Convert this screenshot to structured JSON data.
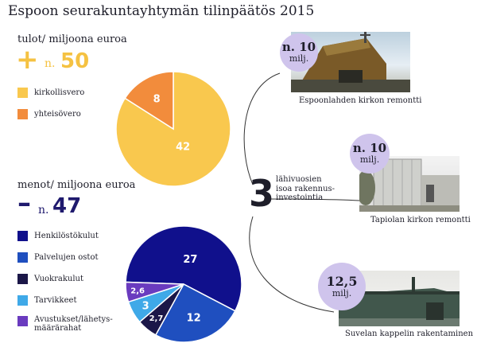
{
  "title": "Espoon seurakuntayhtymän tilinpäätös 2015",
  "income": {
    "label": "tulot/ miljoona euroa",
    "sign": "+",
    "prefix": "n.",
    "value": "50"
  },
  "expenses": {
    "label": "menot/ miljoona euroa",
    "sign": "–",
    "prefix": "n.",
    "value": "47"
  },
  "colors": {
    "kirkollisvero": "#f9c84e",
    "yhteisovero": "#f28c3c",
    "henkilostokulut": "#10108c",
    "palvelujen_ostot": "#1f4fbf",
    "vuokrakulut": "#1b1748",
    "tarvikkeet": "#3fa9e8",
    "avustukset": "#6a3bbf",
    "bubble": "#cfc4ec"
  },
  "chart_data": [
    {
      "type": "pie",
      "title": "tulot/ miljoona euroa",
      "categories": [
        "kirkollisvero",
        "yhteisövero"
      ],
      "values": [
        42,
        8
      ],
      "data_labels": [
        "42",
        "8"
      ]
    },
    {
      "type": "pie",
      "title": "menot/ miljoona euroa",
      "categories": [
        "Henkilöstökulut",
        "Palvelujen ostot",
        "Vuokrakulut",
        "Tarvikkeet",
        "Avustukset/lähetys-määrärahat"
      ],
      "values": [
        27,
        12,
        2.7,
        3,
        2.6
      ],
      "data_labels": [
        "27",
        "12",
        "2,7",
        "3",
        "2,6"
      ]
    }
  ],
  "legend_income": [
    {
      "label": "kirkollisvero",
      "color": "#f9c84e"
    },
    {
      "label": "yhteisövero",
      "color": "#f28c3c"
    }
  ],
  "legend_expenses": [
    {
      "label": "Henkilöstökulut",
      "color": "#10108c"
    },
    {
      "label": "Palvelujen ostot",
      "color": "#1f4fbf"
    },
    {
      "label": "Vuokrakulut",
      "color": "#1b1748"
    },
    {
      "label": "Tarvikkeet",
      "color": "#3fa9e8"
    },
    {
      "label": "Avustukset/lähetys-\nmäärärahat",
      "color": "#6a3bbf"
    }
  ],
  "investments": {
    "count": "3",
    "text_line1": "lähivuosien",
    "text_line2": "isoa rakennus-",
    "text_line3": "investointia",
    "items": [
      {
        "amount": "n. 10",
        "unit": "milj.",
        "caption": "Espoonlahden kirkon remontti"
      },
      {
        "amount": "n. 10",
        "unit": "milj.",
        "caption": "Tapiolan kirkon remontti"
      },
      {
        "amount": "12,5",
        "unit": "milj.",
        "caption": "Suvelan kappelin rakentaminen"
      }
    ]
  }
}
